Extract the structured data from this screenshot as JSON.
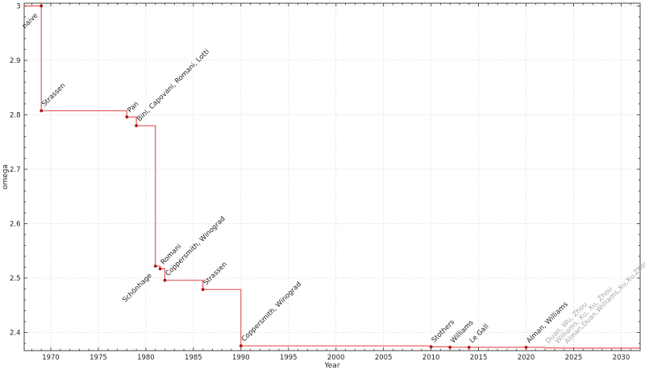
{
  "figure": {
    "background": "#ffffff"
  },
  "chart_data": {
    "type": "line",
    "subtype": "step-post",
    "title": "",
    "xlabel": "Year",
    "ylabel": "omega",
    "xlim": [
      1967.2,
      2032
    ],
    "ylim": [
      2.3667,
      3.005
    ],
    "grid": "major-dotted",
    "legend": "none",
    "x_ticks": [
      {
        "v": 1970,
        "label": "1970"
      },
      {
        "v": 1975,
        "label": "1975"
      },
      {
        "v": 1980,
        "label": "1980"
      },
      {
        "v": 1985,
        "label": "1985"
      },
      {
        "v": 1990,
        "label": "1990"
      },
      {
        "v": 1995,
        "label": "1995"
      },
      {
        "v": 2000,
        "label": "2000"
      },
      {
        "v": 2005,
        "label": "2005"
      },
      {
        "v": 2010,
        "label": "2010"
      },
      {
        "v": 2015,
        "label": "2015"
      },
      {
        "v": 2020,
        "label": "2020"
      },
      {
        "v": 2025,
        "label": "2025"
      },
      {
        "v": 2030,
        "label": "2030"
      }
    ],
    "y_ticks": [
      {
        "v": 2.4,
        "label": "2.4"
      },
      {
        "v": 2.5,
        "label": "2.5"
      },
      {
        "v": 2.6,
        "label": "2.6"
      },
      {
        "v": 2.7,
        "label": "2.7"
      },
      {
        "v": 2.8,
        "label": "2.8"
      },
      {
        "v": 2.9,
        "label": "2.9"
      },
      {
        "v": 3.0,
        "label": "3"
      }
    ],
    "x_minor_step": 1,
    "y_minor_step": 0.02,
    "colors": {
      "line": "#e03030",
      "marker": "#b21515",
      "muted_marker": "#f2a6a6",
      "label": "#1c1c1c",
      "muted_label": "#a6a6a6",
      "grid": "#d2d2d2",
      "axis": "#444444",
      "tick_label": "#222222"
    },
    "series": [
      {
        "name": "omega-upper-bound",
        "points": [
          {
            "year": 1969,
            "omega": 3.0,
            "label": "naive",
            "label_side": "below",
            "muted": false
          },
          {
            "year": 1969,
            "omega": 2.8074,
            "label": "Strassen",
            "label_side": "above",
            "muted": false
          },
          {
            "year": 1978,
            "omega": 2.796,
            "label": "Pan",
            "label_side": "above",
            "muted": false
          },
          {
            "year": 1979,
            "omega": 2.78,
            "label": "Bini, Capovani, Romani, Lotti",
            "label_side": "above",
            "muted": false
          },
          {
            "year": 1981,
            "omega": 2.522,
            "label": "Schönhage",
            "label_side": "below",
            "muted": false
          },
          {
            "year": 1981.5,
            "omega": 2.517,
            "label": "Romani",
            "label_side": "above",
            "muted": false
          },
          {
            "year": 1982,
            "omega": 2.496,
            "label": "Coppersmith, Winograd",
            "label_side": "above",
            "muted": false
          },
          {
            "year": 1986,
            "omega": 2.479,
            "label": "Strassen",
            "label_side": "above",
            "muted": false
          },
          {
            "year": 1990,
            "omega": 2.3755,
            "label": "Coppersmith, Winograd",
            "label_side": "above",
            "muted": false
          },
          {
            "year": 2010,
            "omega": 2.3737,
            "label": "Stothers",
            "label_side": "above",
            "muted": false
          },
          {
            "year": 2012,
            "omega": 2.3729,
            "label": "Williams",
            "label_side": "above",
            "muted": false
          },
          {
            "year": 2014,
            "omega": 2.3728639,
            "label": "Le Gall",
            "label_side": "above",
            "muted": false
          },
          {
            "year": 2020,
            "omega": 2.3728596,
            "label": "Alman, Williams",
            "label_side": "above",
            "muted": false
          },
          {
            "year": 2022,
            "omega": 2.371866,
            "label": "Duan, Wu, Zhou",
            "label_side": "above",
            "muted": true
          },
          {
            "year": 2023,
            "omega": 2.371552,
            "label": "Williams, Xu, Xu, Zhou",
            "label_side": "above",
            "muted": true
          },
          {
            "year": 2024,
            "omega": 2.371339,
            "label": "Alman,Duan,Williams,Xu,Xu,Zhou",
            "label_side": "above",
            "muted": true
          }
        ]
      }
    ]
  }
}
